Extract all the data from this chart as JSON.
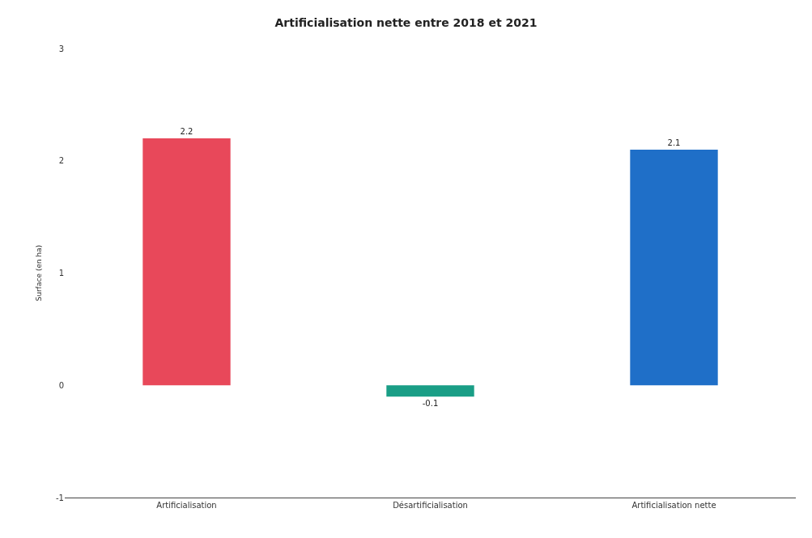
{
  "chart_data": {
    "type": "bar",
    "title": "Artificialisation nette entre 2018 et 2021",
    "ylabel": "Surface (en ha)",
    "categories": [
      "Artificialisation",
      "Désartificialisation",
      "Artificialisation nette"
    ],
    "values": [
      2.2,
      -0.1,
      2.1
    ],
    "colors": [
      "#e8485a",
      "#1a9e86",
      "#1f6fc8"
    ],
    "ylim": [
      -1,
      3
    ],
    "yticks": [
      -1,
      0,
      1,
      2,
      3
    ],
    "data_labels": true
  }
}
